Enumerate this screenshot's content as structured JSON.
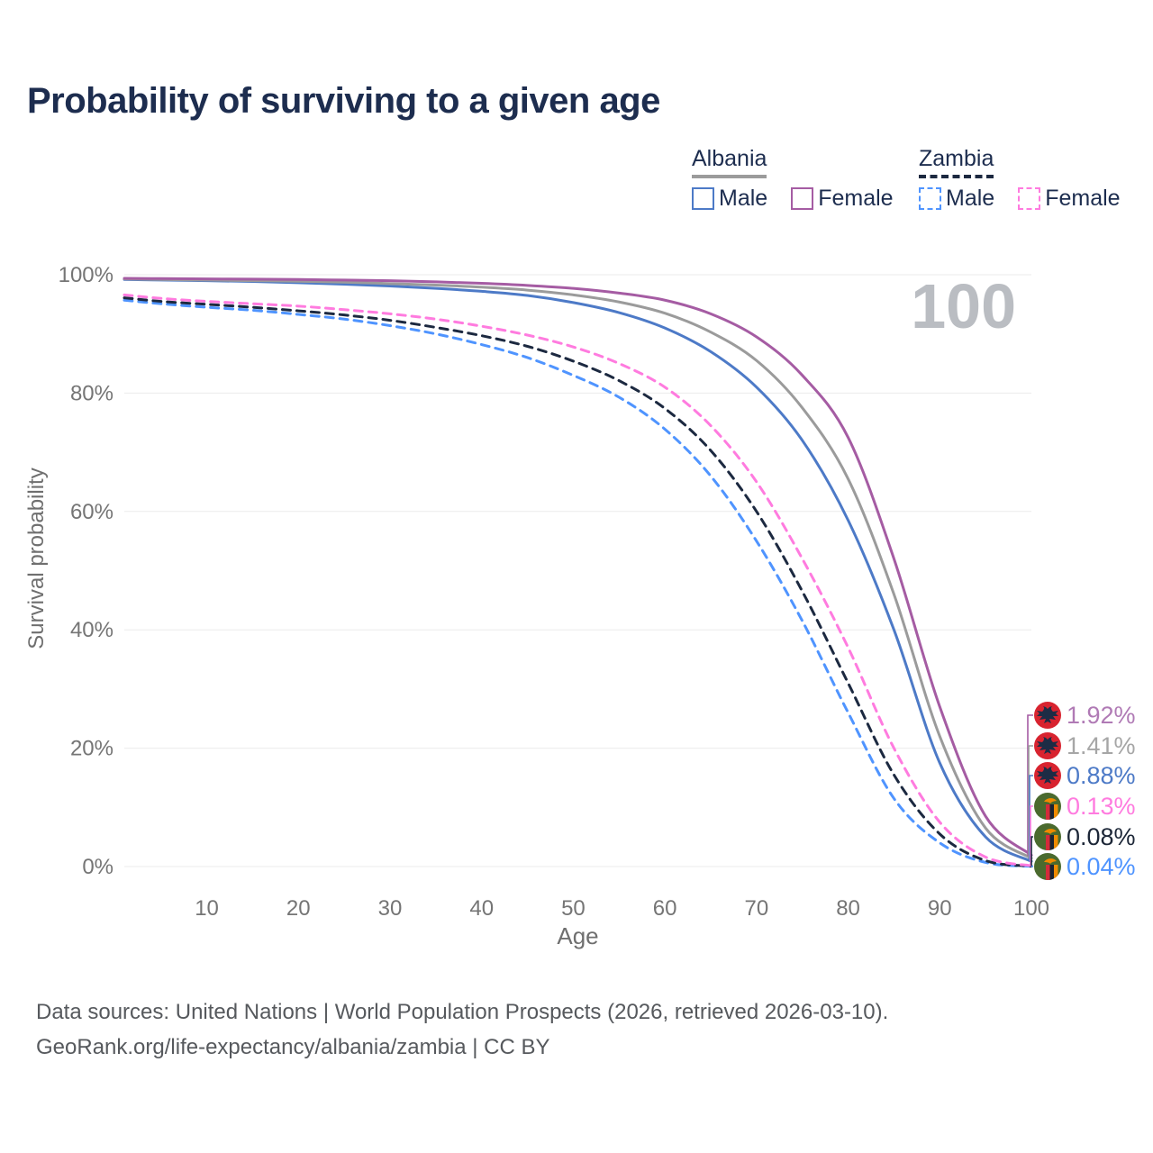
{
  "header": {
    "title": "Probability of surviving to a given age"
  },
  "legend": {
    "groups": [
      {
        "title": "Albania",
        "style": "solid",
        "items": [
          {
            "label": "Male"
          },
          {
            "label": "Female"
          }
        ]
      },
      {
        "title": "Zambia",
        "style": "dashed",
        "items": [
          {
            "label": "Male"
          },
          {
            "label": "Female"
          }
        ]
      }
    ]
  },
  "footer": {
    "line1": "Data sources: United Nations | World Population Prospects (2026, retrieved 2026-03-10).",
    "line2": "GeoRank.org/life-expectancy/albania/zambia | CC BY"
  },
  "chart_data": {
    "type": "line",
    "title": "Probability of surviving to a given age",
    "xlabel": "Age",
    "ylabel": "Survival probability",
    "xlim": [
      1,
      100
    ],
    "ylim": [
      0,
      100
    ],
    "x_ticks": [
      10,
      20,
      30,
      40,
      50,
      60,
      70,
      80,
      90,
      100
    ],
    "y_ticks": [
      0,
      20,
      40,
      60,
      80,
      100
    ],
    "y_tick_suffix": "%",
    "grid": true,
    "legend_position": "top-right",
    "watermark": "100",
    "grid_color": "#ebebeb",
    "tick_color": "#757575",
    "axis_label_color": "#6f6f6f",
    "watermark_color": "#babdc2",
    "x": [
      1,
      5,
      10,
      15,
      20,
      25,
      30,
      35,
      40,
      45,
      50,
      55,
      60,
      65,
      70,
      75,
      80,
      85,
      90,
      95,
      100
    ],
    "series": [
      {
        "name": "Albania — Female",
        "country": "Albania",
        "sex": "Female",
        "color": "#a55ca3",
        "label_color": "#b07ab5",
        "dash": false,
        "end_label": "1.92%",
        "values": [
          99.4,
          99.35,
          99.3,
          99.25,
          99.2,
          99.1,
          99.0,
          98.8,
          98.55,
          98.2,
          97.7,
          96.9,
          95.7,
          93.4,
          89.5,
          83.0,
          72.5,
          52.0,
          27.0,
          8.5,
          1.92
        ]
      },
      {
        "name": "Albania — Both sexes",
        "country": "Albania",
        "sex": "Both sexes",
        "color": "#9b9b9b",
        "label_color": "#a6a6a6",
        "dash": false,
        "end_label": "1.41%",
        "values": [
          99.3,
          99.2,
          99.1,
          99.0,
          98.9,
          98.75,
          98.5,
          98.25,
          97.9,
          97.4,
          96.6,
          95.4,
          93.5,
          90.3,
          85.5,
          77.5,
          65.5,
          46.0,
          22.0,
          6.5,
          1.41
        ]
      },
      {
        "name": "Albania — Male",
        "country": "Albania",
        "sex": "Male",
        "color": "#4d7ac7",
        "label_color": "#4d7ac7",
        "dash": false,
        "end_label": "0.88%",
        "values": [
          99.2,
          99.1,
          99.0,
          98.85,
          98.65,
          98.4,
          98.1,
          97.7,
          97.2,
          96.5,
          95.3,
          93.6,
          91.0,
          87.0,
          81.0,
          72.0,
          58.5,
          40.0,
          17.5,
          5.0,
          0.88
        ]
      },
      {
        "name": "Zambia — Female",
        "country": "Zambia",
        "sex": "Female",
        "color": "#ff7bdf",
        "label_color": "#ff7bdf",
        "dash": true,
        "end_label": "0.13%",
        "values": [
          96.6,
          96.0,
          95.5,
          95.1,
          94.7,
          94.1,
          93.4,
          92.5,
          91.3,
          89.8,
          87.8,
          85.0,
          81.0,
          74.5,
          65.0,
          52.0,
          37.0,
          20.0,
          7.5,
          1.6,
          0.13
        ]
      },
      {
        "name": "Zambia — Both sexes",
        "country": "Zambia",
        "sex": "Both sexes",
        "color": "#1c2940",
        "label_color": "#1c2637",
        "dash": true,
        "end_label": "0.08%",
        "values": [
          96.1,
          95.5,
          95.0,
          94.5,
          93.9,
          93.2,
          92.3,
          91.1,
          89.7,
          87.9,
          85.4,
          82.1,
          77.4,
          70.3,
          60.0,
          46.5,
          31.0,
          15.5,
          5.5,
          1.0,
          0.08
        ]
      },
      {
        "name": "Zambia — Male",
        "country": "Zambia",
        "sex": "Male",
        "color": "#4f94ff",
        "label_color": "#4f94ff",
        "dash": true,
        "end_label": "0.04%",
        "values": [
          95.7,
          95.1,
          94.5,
          94.0,
          93.3,
          92.5,
          91.4,
          90.0,
          88.2,
          86.0,
          83.0,
          79.3,
          73.9,
          66.0,
          55.0,
          41.5,
          26.0,
          11.5,
          4.0,
          0.7,
          0.04
        ]
      }
    ],
    "flag_colors": {
      "albania_red": "#d8232f",
      "albania_eagle": "#1d2c45",
      "zambia_green": "#4a6a2e",
      "zambia_red": "#d32b3a",
      "zambia_black": "#1b2430",
      "zambia_orange": "#ef8b00"
    }
  }
}
